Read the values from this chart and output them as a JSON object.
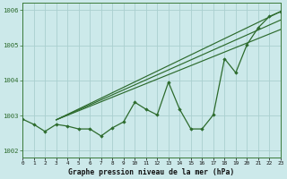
{
  "background_color": "#cce9ea",
  "grid_color": "#aacfcf",
  "line_color": "#2d6b2d",
  "xlabel": "Graphe pression niveau de la mer (hPa)",
  "xlim": [
    0,
    23
  ],
  "ylim": [
    1001.8,
    1006.2
  ],
  "yticks": [
    1002,
    1003,
    1004,
    1005,
    1006
  ],
  "xticks": [
    0,
    1,
    2,
    3,
    4,
    5,
    6,
    7,
    8,
    9,
    10,
    11,
    12,
    13,
    14,
    15,
    16,
    17,
    18,
    19,
    20,
    21,
    22,
    23
  ],
  "main_series_x": [
    0,
    1,
    2,
    3,
    4,
    5,
    6,
    7,
    8,
    9,
    10,
    11,
    12,
    13,
    14,
    15,
    16,
    17,
    18,
    19,
    20,
    21,
    22,
    23
  ],
  "main_series_y": [
    1002.9,
    1002.75,
    1002.55,
    1002.75,
    1002.7,
    1002.62,
    1002.62,
    1002.42,
    1002.65,
    1002.82,
    1003.38,
    1003.18,
    1003.02,
    1003.95,
    1003.18,
    1002.62,
    1002.62,
    1003.02,
    1004.62,
    1004.22,
    1005.02,
    1005.5,
    1005.82,
    1005.96
  ],
  "trend_lines": [
    {
      "x0": 3,
      "y0": 1002.88,
      "x1": 23,
      "y1": 1005.96
    },
    {
      "x0": 3,
      "y0": 1002.88,
      "x1": 23,
      "y1": 1005.72
    },
    {
      "x0": 3,
      "y0": 1002.88,
      "x1": 23,
      "y1": 1005.45
    }
  ]
}
